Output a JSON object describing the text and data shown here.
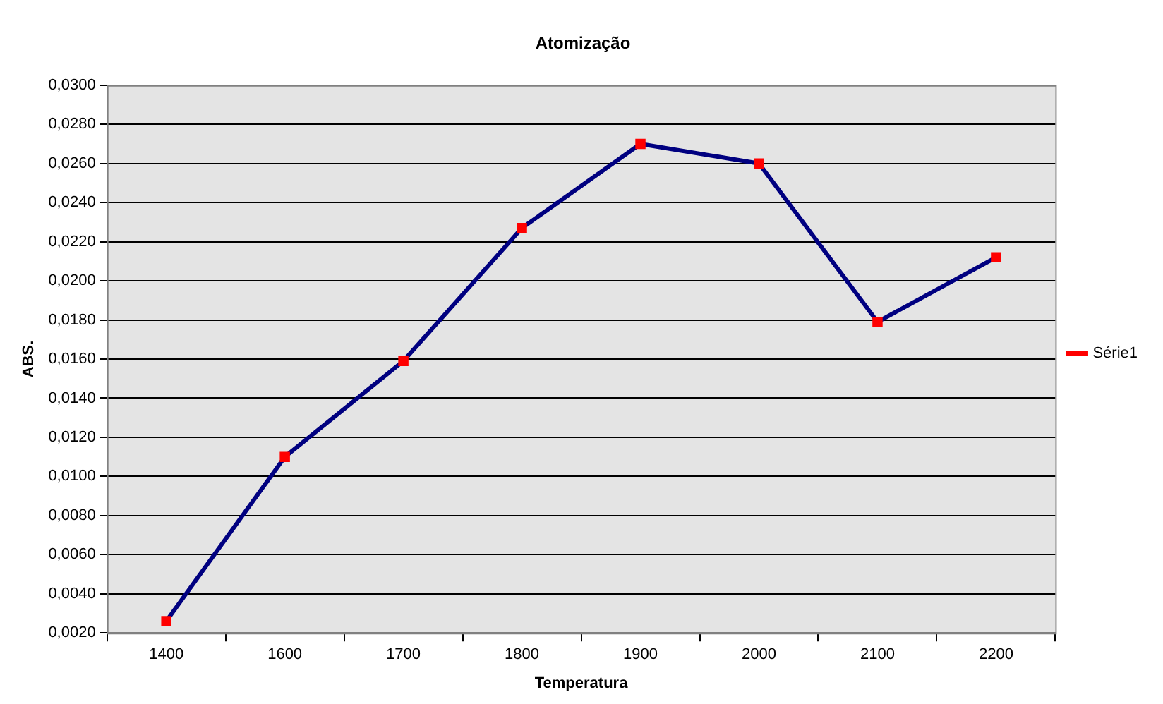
{
  "chart_data": {
    "type": "line",
    "title": "Atomização",
    "xlabel": "Temperatura",
    "ylabel": "ABS.",
    "categories": [
      "1400",
      "1600",
      "1700",
      "1800",
      "1900",
      "2000",
      "2100",
      "2200"
    ],
    "series": [
      {
        "name": "Série1",
        "color": "#000080",
        "values": [
          0.0026,
          0.011,
          0.0159,
          0.0227,
          0.027,
          0.026,
          0.0179,
          0.0212
        ]
      }
    ],
    "ylim": [
      0.002,
      0.03
    ],
    "yticks": [
      {
        "value": 0.002,
        "label": "0,0020"
      },
      {
        "value": 0.004,
        "label": "0,0040"
      },
      {
        "value": 0.006,
        "label": "0,0060"
      },
      {
        "value": 0.008,
        "label": "0,0080"
      },
      {
        "value": 0.01,
        "label": "0,0100"
      },
      {
        "value": 0.012,
        "label": "0,0120"
      },
      {
        "value": 0.014,
        "label": "0,0140"
      },
      {
        "value": 0.016,
        "label": "0,0160"
      },
      {
        "value": 0.018,
        "label": "0,0180"
      },
      {
        "value": 0.02,
        "label": "0,0200"
      },
      {
        "value": 0.022,
        "label": "0,0220"
      },
      {
        "value": 0.024,
        "label": "0,0240"
      },
      {
        "value": 0.026,
        "label": "0,0260"
      },
      {
        "value": 0.028,
        "label": "0,0280"
      },
      {
        "value": 0.03,
        "label": "0,0300"
      }
    ],
    "grid": "y",
    "legend": "right",
    "marker": "square",
    "line_style": "solid"
  }
}
